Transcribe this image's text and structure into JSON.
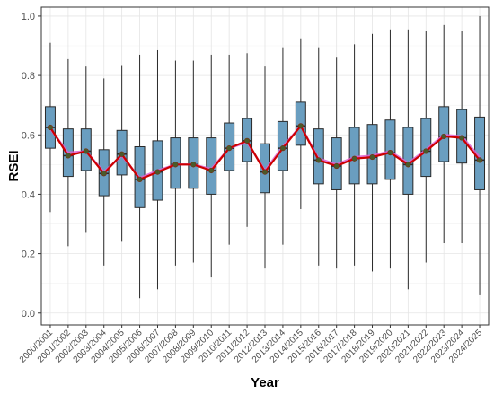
{
  "chart_data": {
    "type": "box",
    "xlabel": "Year",
    "ylabel": "RSEI",
    "ylim": [
      -0.04,
      1.03
    ],
    "yticks": [
      0.0,
      0.2,
      0.4,
      0.6,
      0.8,
      1.0
    ],
    "ytick_labels": [
      "0.0",
      "0.2",
      "0.4",
      "0.6",
      "0.8",
      "1.0"
    ],
    "grid": true,
    "categories": [
      "2000/2001",
      "2001/2002",
      "2002/2003",
      "2003/2004",
      "2004/2005",
      "2005/2006",
      "2006/2007",
      "2007/2008",
      "2008/2009",
      "2009/2010",
      "2010/2011",
      "2011/2012",
      "2012/2013",
      "2013/2014",
      "2014/2015",
      "2015/2016",
      "2016/2017",
      "2017/2018",
      "2018/2019",
      "2019/2020",
      "2020/2021",
      "2021/2022",
      "2022/2023",
      "2023/2024",
      "2024/2025"
    ],
    "boxes": [
      {
        "min": 0.34,
        "q1": 0.555,
        "median": 0.625,
        "q3": 0.695,
        "max": 0.91
      },
      {
        "min": 0.225,
        "q1": 0.46,
        "median": 0.53,
        "q3": 0.62,
        "max": 0.855
      },
      {
        "min": 0.27,
        "q1": 0.48,
        "median": 0.545,
        "q3": 0.62,
        "max": 0.83
      },
      {
        "min": 0.16,
        "q1": 0.395,
        "median": 0.47,
        "q3": 0.55,
        "max": 0.79
      },
      {
        "min": 0.24,
        "q1": 0.465,
        "median": 0.535,
        "q3": 0.615,
        "max": 0.835
      },
      {
        "min": 0.05,
        "q1": 0.355,
        "median": 0.45,
        "q3": 0.56,
        "max": 0.87
      },
      {
        "min": 0.08,
        "q1": 0.38,
        "median": 0.475,
        "q3": 0.58,
        "max": 0.885
      },
      {
        "min": 0.16,
        "q1": 0.42,
        "median": 0.5,
        "q3": 0.59,
        "max": 0.85
      },
      {
        "min": 0.17,
        "q1": 0.42,
        "median": 0.5,
        "q3": 0.59,
        "max": 0.85
      },
      {
        "min": 0.12,
        "q1": 0.4,
        "median": 0.48,
        "q3": 0.59,
        "max": 0.87
      },
      {
        "min": 0.23,
        "q1": 0.48,
        "median": 0.555,
        "q3": 0.64,
        "max": 0.87
      },
      {
        "min": 0.29,
        "q1": 0.51,
        "median": 0.58,
        "q3": 0.655,
        "max": 0.875
      },
      {
        "min": 0.15,
        "q1": 0.405,
        "median": 0.475,
        "q3": 0.57,
        "max": 0.83
      },
      {
        "min": 0.23,
        "q1": 0.48,
        "median": 0.555,
        "q3": 0.645,
        "max": 0.895
      },
      {
        "min": 0.35,
        "q1": 0.565,
        "median": 0.63,
        "q3": 0.71,
        "max": 0.925
      },
      {
        "min": 0.16,
        "q1": 0.435,
        "median": 0.515,
        "q3": 0.62,
        "max": 0.895
      },
      {
        "min": 0.15,
        "q1": 0.415,
        "median": 0.495,
        "q3": 0.59,
        "max": 0.86
      },
      {
        "min": 0.16,
        "q1": 0.435,
        "median": 0.52,
        "q3": 0.625,
        "max": 0.905
      },
      {
        "min": 0.14,
        "q1": 0.435,
        "median": 0.525,
        "q3": 0.635,
        "max": 0.94
      },
      {
        "min": 0.15,
        "q1": 0.45,
        "median": 0.54,
        "q3": 0.65,
        "max": 0.955
      },
      {
        "min": 0.08,
        "q1": 0.4,
        "median": 0.5,
        "q3": 0.625,
        "max": 0.955
      },
      {
        "min": 0.17,
        "q1": 0.46,
        "median": 0.545,
        "q3": 0.655,
        "max": 0.95
      },
      {
        "min": 0.235,
        "q1": 0.51,
        "median": 0.595,
        "q3": 0.695,
        "max": 0.97
      },
      {
        "min": 0.235,
        "q1": 0.505,
        "median": 0.59,
        "q3": 0.685,
        "max": 0.95
      },
      {
        "min": 0.06,
        "q1": 0.415,
        "median": 0.515,
        "q3": 0.66,
        "max": 1.0
      }
    ],
    "series": [
      {
        "type": "line",
        "color": "#cc0000",
        "values": [
          0.625,
          0.53,
          0.545,
          0.47,
          0.535,
          0.45,
          0.475,
          0.5,
          0.5,
          0.48,
          0.555,
          0.58,
          0.475,
          0.555,
          0.63,
          0.515,
          0.495,
          0.52,
          0.525,
          0.54,
          0.5,
          0.545,
          0.595,
          0.59,
          0.515
        ]
      },
      {
        "type": "line",
        "color": "#e05fd0",
        "values": [
          0.62,
          0.54,
          0.545,
          0.475,
          0.53,
          0.455,
          0.48,
          0.5,
          0.5,
          0.485,
          0.555,
          0.575,
          0.48,
          0.56,
          0.63,
          0.52,
          0.5,
          0.525,
          0.53,
          0.545,
          0.505,
          0.55,
          0.6,
          0.595,
          0.525
        ]
      }
    ],
    "colors": {
      "box_fill": "#6a9ec0",
      "box_stroke": "#2a2a2a",
      "median_line": "#cc0000",
      "mean_line": "#e05fd0",
      "point": "#4a5a2a",
      "grid": "#e5e5e5",
      "panel_border": "#333333"
    }
  }
}
